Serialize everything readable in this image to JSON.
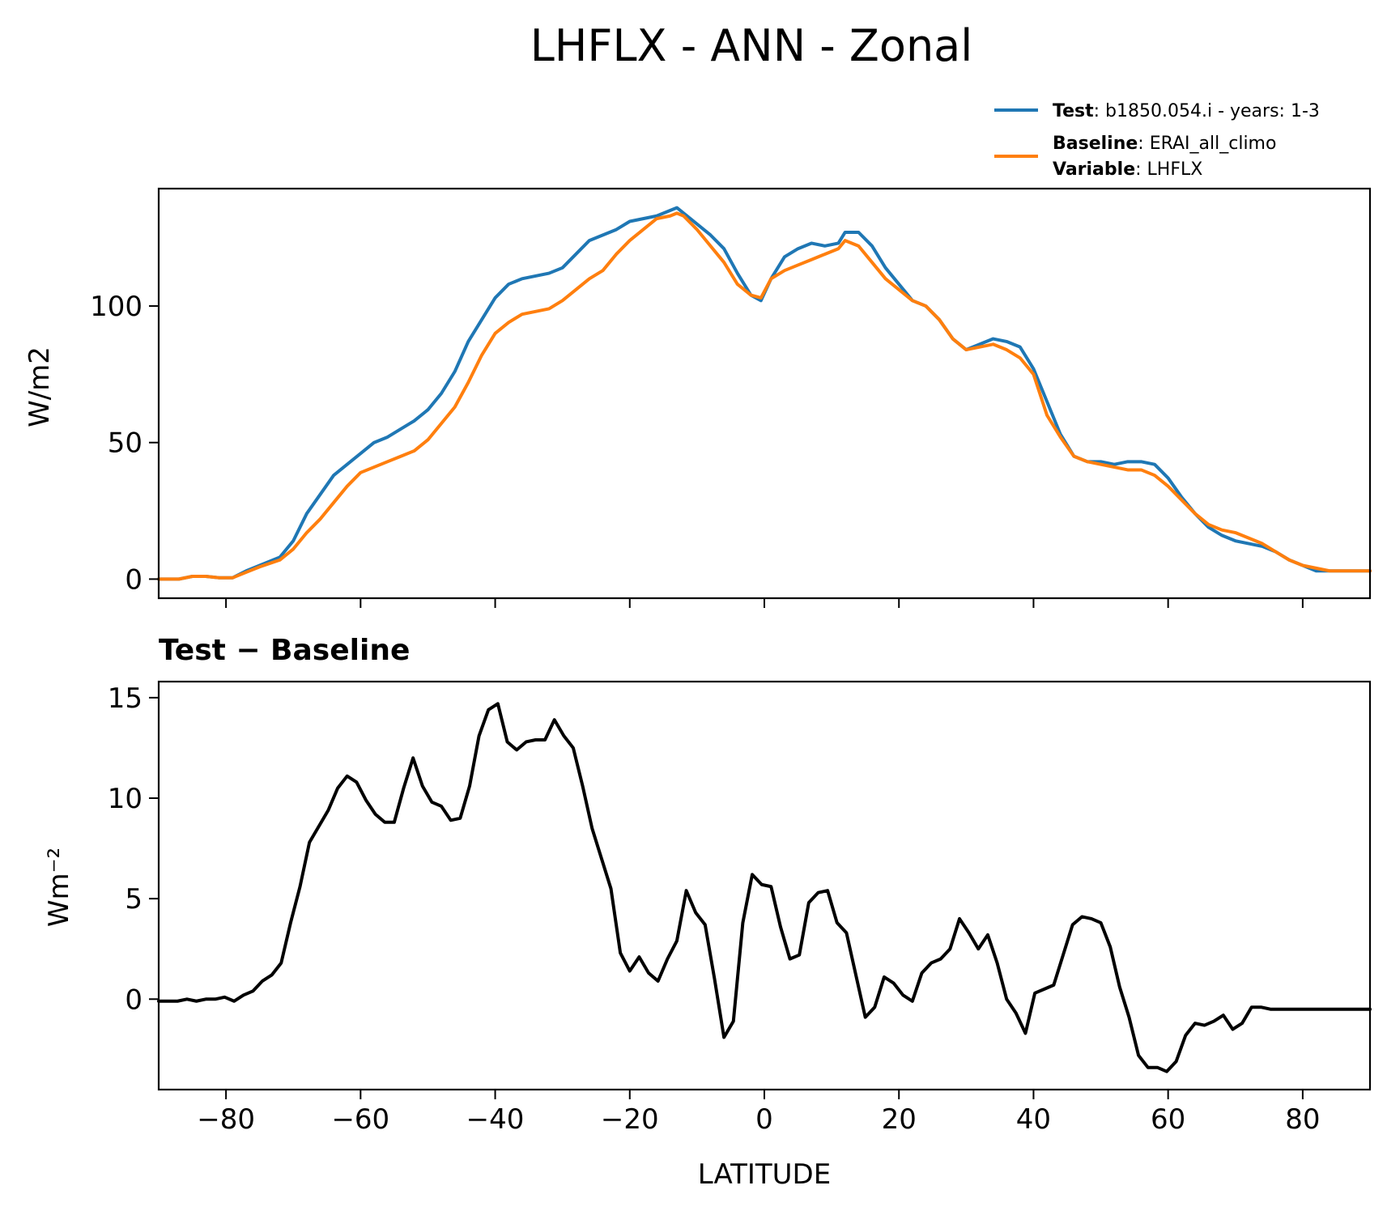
{
  "title": "LHFLX - ANN - Zonal",
  "legend": [
    {
      "bold": "Test",
      "rest": ": b1850.054.i - years: 1-3",
      "color": "#1f77b4"
    },
    {
      "bold": "Baseline",
      "rest": ": ERAI_all_climo",
      "color": "#ff7f0e"
    },
    {
      "bold": "Variable",
      "rest": ": LHFLX",
      "color": null
    }
  ],
  "chart_data": [
    {
      "type": "line",
      "ylabel": "W/m2",
      "xlim": [
        -90,
        90
      ],
      "ylim": [
        -7,
        143
      ],
      "yticks": [
        0,
        50,
        100
      ],
      "ytick_labels": [
        "0",
        "50",
        "100"
      ],
      "xticks": [
        -80,
        -60,
        -40,
        -20,
        0,
        20,
        40,
        60,
        80
      ],
      "x": [
        -90,
        -87,
        -85,
        -83,
        -81,
        -79,
        -77,
        -75,
        -72,
        -70,
        -68,
        -66,
        -64,
        -62,
        -60,
        -58,
        -56,
        -54,
        -52,
        -50,
        -48,
        -46,
        -44,
        -42,
        -40,
        -38,
        -36,
        -34,
        -32,
        -30,
        -28,
        -26,
        -24,
        -22,
        -20,
        -18,
        -16,
        -14,
        -13,
        -12,
        -10,
        -8,
        -6,
        -4,
        -2,
        -0.5,
        1,
        3,
        5,
        7,
        9,
        11,
        12,
        14,
        16,
        18,
        20,
        22,
        24,
        26,
        28,
        30,
        32,
        34,
        36,
        38,
        40,
        42,
        44,
        46,
        48,
        50,
        52,
        54,
        56,
        58,
        60,
        62,
        64,
        66,
        68,
        70,
        72,
        74,
        76,
        78,
        80,
        82,
        84,
        86,
        88,
        90
      ],
      "series": [
        {
          "name": "Test",
          "color": "#1f77b4",
          "values": [
            0,
            0,
            1,
            1,
            0.5,
            0.5,
            3,
            5,
            8,
            14,
            24,
            31,
            38,
            42,
            46,
            50,
            52,
            55,
            58,
            62,
            68,
            76,
            87,
            95,
            103,
            108,
            110,
            111,
            112,
            114,
            119,
            124,
            126,
            128,
            131,
            132,
            133,
            135,
            136,
            134,
            130,
            126,
            121,
            112,
            104,
            102,
            110,
            118,
            121,
            123,
            122,
            123,
            127,
            127,
            122,
            114,
            108,
            102,
            100,
            95,
            88,
            84,
            86,
            88,
            87,
            85,
            77,
            65,
            53,
            45,
            43,
            43,
            42,
            43,
            43,
            42,
            37,
            30,
            24,
            19,
            16,
            14,
            13,
            12,
            10,
            7,
            5,
            3,
            3,
            3,
            3,
            3
          ],
          "_note_ignore": ""
        },
        {
          "name": "Baseline",
          "color": "#ff7f0e",
          "values": [
            0,
            0,
            1,
            1,
            0.5,
            0.5,
            2.5,
            4.5,
            7,
            11,
            17,
            22,
            28,
            34,
            39,
            41,
            43,
            45,
            47,
            51,
            57,
            63,
            72,
            82,
            90,
            94,
            97,
            98,
            99,
            102,
            106,
            110,
            113,
            119,
            124,
            128,
            132,
            133,
            134,
            133,
            128,
            122,
            116,
            108,
            104,
            103,
            110,
            113,
            115,
            117,
            119,
            121,
            124,
            122,
            116,
            110,
            106,
            102,
            100,
            95,
            88,
            84,
            85,
            86,
            84,
            81,
            75,
            60,
            52,
            45,
            43,
            42,
            41,
            40,
            40,
            38,
            34,
            29,
            24,
            20,
            18,
            17,
            15,
            13,
            10,
            7,
            5,
            4,
            3,
            3,
            3,
            3
          ]
        }
      ]
    },
    {
      "type": "line",
      "title": "Test − Baseline",
      "xlabel": "LATITUDE",
      "ylabel": "Wm⁻²",
      "xlim": [
        -90,
        90
      ],
      "ylim": [
        -4.5,
        15.8
      ],
      "yticks": [
        0,
        5,
        10,
        15
      ],
      "ytick_labels": [
        "0",
        "5",
        "10",
        "15"
      ],
      "xticks": [
        -80,
        -60,
        -40,
        -20,
        0,
        20,
        40,
        60,
        80
      ],
      "xtick_labels": [
        "−80",
        "−60",
        "−40",
        "−20",
        "0",
        "20",
        "40",
        "60",
        "80"
      ],
      "x": [
        -90,
        -88.6,
        -87.2,
        -85.8,
        -84.4,
        -83,
        -81.6,
        -80.2,
        -78.8,
        -77.4,
        -76,
        -74.6,
        -73.2,
        -71.8,
        -70.4,
        -69,
        -67.6,
        -66.2,
        -64.8,
        -63.4,
        -62,
        -60.6,
        -59.2,
        -57.8,
        -56.4,
        -55,
        -53.6,
        -52.2,
        -50.8,
        -49.4,
        -48,
        -46.6,
        -45.2,
        -43.8,
        -42.4,
        -41,
        -39.6,
        -38.2,
        -36.8,
        -35.4,
        -34,
        -32.6,
        -31.2,
        -29.8,
        -28.4,
        -27,
        -25.6,
        -24.2,
        -22.8,
        -21.4,
        -20,
        -18.6,
        -17.2,
        -15.8,
        -14.4,
        -13,
        -11.6,
        -10.2,
        -8.8,
        -7.4,
        -6,
        -4.6,
        -3.2,
        -1.8,
        -0.4,
        1,
        2.4,
        3.8,
        5.2,
        6.6,
        8,
        9.4,
        10.8,
        12.2,
        13.6,
        15,
        16.4,
        17.8,
        19.2,
        20.6,
        22,
        23.4,
        24.8,
        26.2,
        27.6,
        29,
        30.4,
        31.8,
        33.2,
        34.6,
        36,
        37.4,
        38.8,
        40.2,
        41.6,
        43,
        44.4,
        45.8,
        47.2,
        48.6,
        50,
        51.4,
        52.8,
        54.2,
        55.6,
        57,
        58.4,
        59.8,
        61.2,
        62.6,
        64,
        65.4,
        66.8,
        68.2,
        69.6,
        71,
        72.4,
        73.8,
        75.2,
        76.6,
        78,
        79.4,
        80.8,
        82.2,
        83.6,
        85,
        86.4,
        87.8,
        89.2,
        90
      ],
      "series": [
        {
          "name": "Test − Baseline",
          "color": "#000000",
          "values": [
            -0.1,
            -0.1,
            -0.1,
            0,
            -0.1,
            0,
            0,
            0.1,
            -0.1,
            0.2,
            0.4,
            0.9,
            1.2,
            1.8,
            3.8,
            5.6,
            7.8,
            8.6,
            9.4,
            10.5,
            11.1,
            10.8,
            9.9,
            9.2,
            8.8,
            8.8,
            10.5,
            12.0,
            10.6,
            9.8,
            9.6,
            8.9,
            9.0,
            10.6,
            13.1,
            14.4,
            14.7,
            12.8,
            12.4,
            12.8,
            12.9,
            12.9,
            13.9,
            13.1,
            12.5,
            10.6,
            8.5,
            7.0,
            5.5,
            2.3,
            1.4,
            2.1,
            1.3,
            0.9,
            2.0,
            2.9,
            5.4,
            4.3,
            3.7,
            1.0,
            -1.9,
            -1.1,
            3.8,
            6.2,
            5.7,
            5.6,
            3.6,
            2.0,
            2.2,
            4.8,
            5.3,
            5.4,
            3.8,
            3.3,
            1.2,
            -0.9,
            -0.4,
            1.1,
            0.8,
            0.2,
            -0.1,
            1.3,
            1.8,
            2.0,
            2.5,
            4.0,
            3.3,
            2.5,
            3.2,
            1.8,
            0,
            -0.7,
            -1.7,
            0.3,
            0.5,
            0.7,
            2.2,
            3.7,
            4.1,
            4.0,
            3.8,
            2.6,
            0.6,
            -0.9,
            -2.8,
            -3.4,
            -3.4,
            -3.6,
            -3.1,
            -1.8,
            -1.2,
            -1.3,
            -1.1,
            -0.8,
            -1.5,
            -1.2,
            -0.4,
            -0.4,
            -0.5,
            -0.5,
            -0.5,
            -0.5,
            -0.5,
            -0.5,
            -0.5,
            -0.5,
            -0.5,
            -0.5,
            -0.5,
            -0.5
          ]
        }
      ]
    }
  ]
}
